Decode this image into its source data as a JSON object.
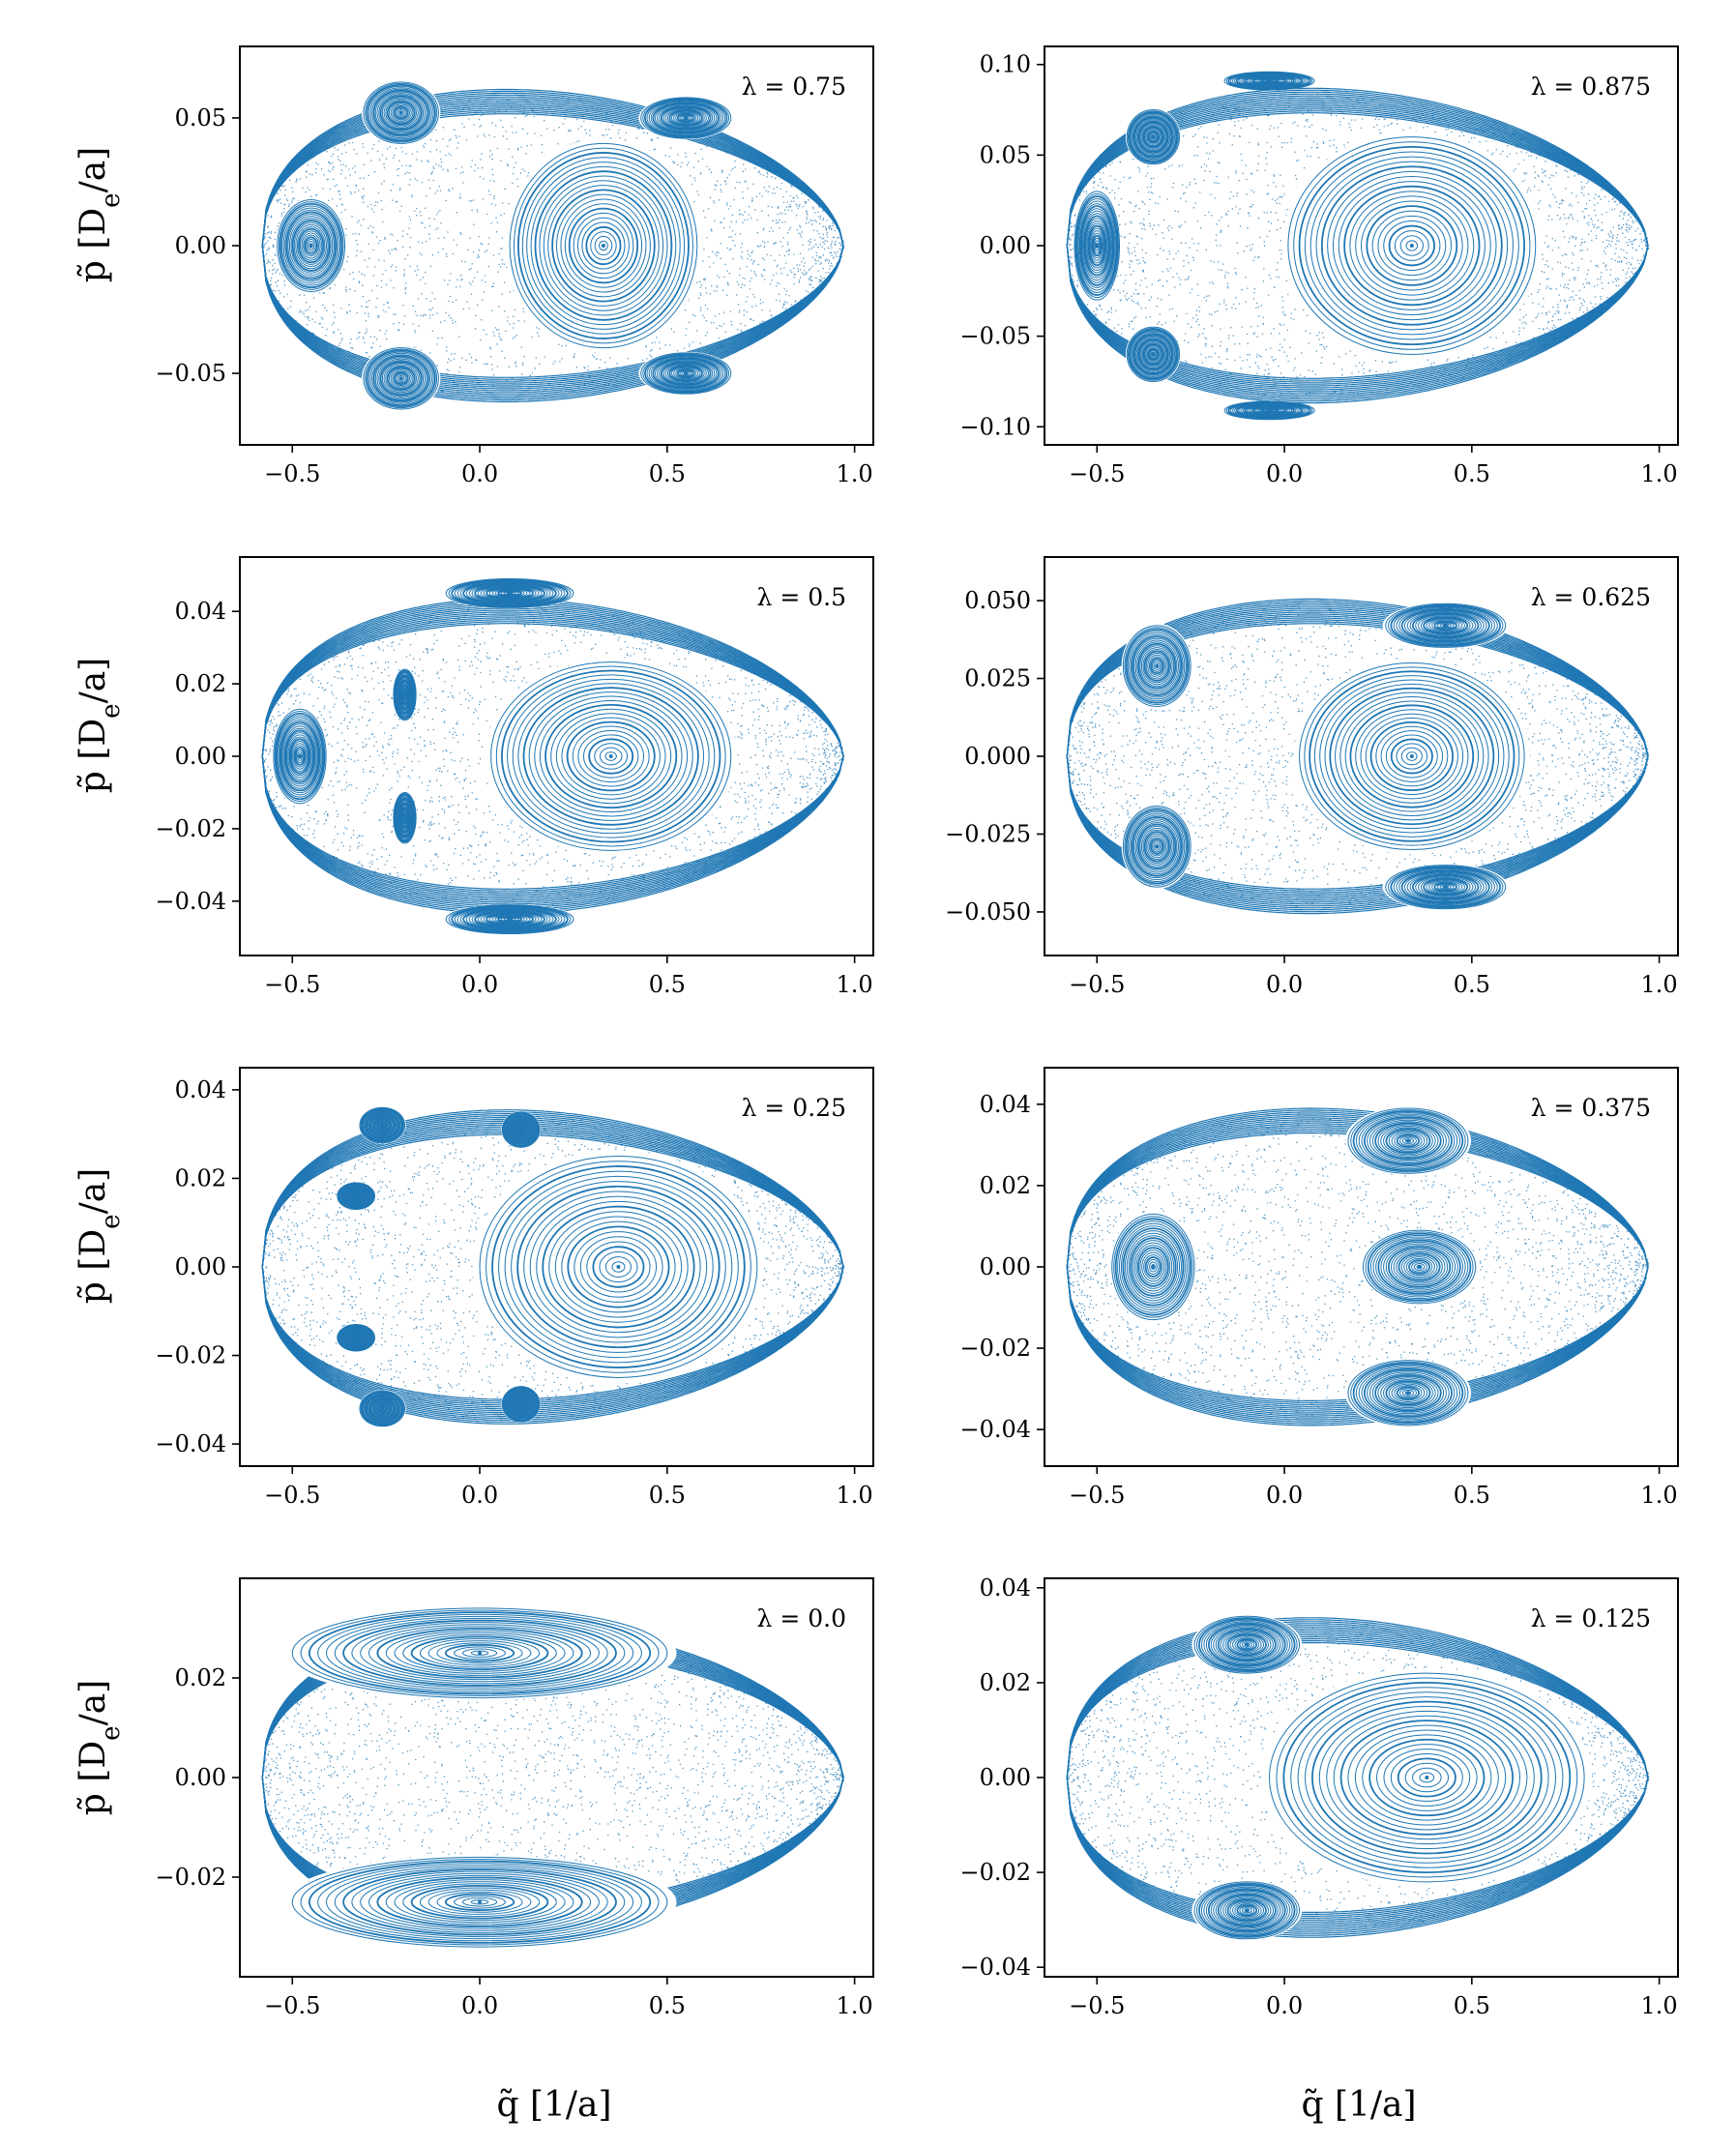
{
  "figure": {
    "ylabel": "p̃ [De/a]",
    "ylabel_main": "p̃ [D",
    "ylabel_sub": "e",
    "ylabel_end": "/a]",
    "xlabel": "q̃ [1/a]",
    "colors": {
      "trajectory": "#1f77b4",
      "axes": "#000000"
    }
  },
  "chart_data": [
    {
      "type": "scatter",
      "title": "λ = 0.75",
      "lambda": 0.75,
      "xlim": [
        -0.64,
        1.05
      ],
      "ylim": [
        -0.078,
        0.078
      ],
      "xticks": [
        "-0.5",
        "0.0",
        "0.5",
        "1.0"
      ],
      "xtick_values": [
        -0.5,
        0.0,
        0.5,
        1.0
      ],
      "yticks": [
        "-0.05",
        "0.00",
        "0.05"
      ],
      "ytick_values": [
        -0.05,
        0.0,
        0.05
      ],
      "ymax": 0.069,
      "center": [
        0.33,
        0.0
      ],
      "islands": [
        [
          0.33,
          0.0,
          0.25,
          0.04
        ],
        [
          -0.45,
          0.0,
          0.09,
          0.018
        ],
        [
          -0.21,
          0.052,
          0.1,
          0.012
        ],
        [
          -0.21,
          -0.052,
          0.1,
          0.012
        ],
        [
          0.55,
          0.05,
          0.12,
          0.008
        ],
        [
          0.55,
          -0.05,
          0.12,
          0.008
        ]
      ]
    },
    {
      "type": "scatter",
      "title": "λ = 0.875",
      "lambda": 0.875,
      "xlim": [
        -0.64,
        1.05
      ],
      "ylim": [
        -0.11,
        0.11
      ],
      "xticks": [
        "-0.5",
        "0.0",
        "0.5",
        "1.0"
      ],
      "xtick_values": [
        -0.5,
        0.0,
        0.5,
        1.0
      ],
      "yticks": [
        "-0.10",
        "-0.05",
        "0.00",
        "0.05",
        "0.10"
      ],
      "ytick_values": [
        -0.1,
        -0.05,
        0.0,
        0.05,
        0.1
      ],
      "ymax": 0.098,
      "center": [
        0.34,
        0.0
      ],
      "islands": [
        [
          0.34,
          0.0,
          0.33,
          0.06
        ],
        [
          -0.5,
          0.0,
          0.06,
          0.03
        ],
        [
          -0.35,
          0.06,
          0.07,
          0.015
        ],
        [
          -0.35,
          -0.06,
          0.07,
          0.015
        ],
        [
          -0.04,
          0.091,
          0.12,
          0.005
        ],
        [
          -0.04,
          -0.091,
          0.12,
          0.005
        ]
      ]
    },
    {
      "type": "scatter",
      "title": "λ = 0.5",
      "lambda": 0.5,
      "xlim": [
        -0.64,
        1.05
      ],
      "ylim": [
        -0.055,
        0.055
      ],
      "xticks": [
        "-0.5",
        "0.0",
        "0.5",
        "1.0"
      ],
      "xtick_values": [
        -0.5,
        0.0,
        0.5,
        1.0
      ],
      "yticks": [
        "-0.04",
        "-0.02",
        "0.00",
        "0.02",
        "0.04"
      ],
      "ytick_values": [
        -0.04,
        -0.02,
        0.0,
        0.02,
        0.04
      ],
      "ymax": 0.049,
      "center": [
        0.35,
        0.0
      ],
      "islands": [
        [
          0.35,
          0.0,
          0.32,
          0.026
        ],
        [
          -0.48,
          0.0,
          0.07,
          0.013
        ],
        [
          0.08,
          0.045,
          0.17,
          0.004
        ],
        [
          0.08,
          -0.045,
          0.17,
          0.004
        ],
        [
          -0.2,
          0.017,
          0.03,
          0.007
        ],
        [
          -0.2,
          -0.017,
          0.03,
          0.007
        ]
      ]
    },
    {
      "type": "scatter",
      "title": "λ = 0.625",
      "lambda": 0.625,
      "xlim": [
        -0.64,
        1.05
      ],
      "ylim": [
        -0.064,
        0.064
      ],
      "xticks": [
        "-0.5",
        "0.0",
        "0.5",
        "1.0"
      ],
      "xtick_values": [
        -0.5,
        0.0,
        0.5,
        1.0
      ],
      "yticks": [
        "-0.050",
        "-0.025",
        "0.000",
        "0.025",
        "0.050"
      ],
      "ytick_values": [
        -0.05,
        -0.025,
        0.0,
        0.025,
        0.05
      ],
      "ymax": 0.057,
      "center": [
        0.34,
        0.0
      ],
      "islands": [
        [
          0.34,
          0.0,
          0.3,
          0.03
        ],
        [
          -0.34,
          0.029,
          0.09,
          0.013
        ],
        [
          -0.34,
          -0.029,
          0.09,
          0.013
        ],
        [
          0.43,
          0.042,
          0.16,
          0.007
        ],
        [
          0.43,
          -0.042,
          0.16,
          0.007
        ]
      ]
    },
    {
      "type": "scatter",
      "title": "λ = 0.25",
      "lambda": 0.25,
      "xlim": [
        -0.64,
        1.05
      ],
      "ylim": [
        -0.045,
        0.045
      ],
      "xticks": [
        "-0.5",
        "0.0",
        "0.5",
        "1.0"
      ],
      "xtick_values": [
        -0.5,
        0.0,
        0.5,
        1.0
      ],
      "yticks": [
        "-0.04",
        "-0.02",
        "0.00",
        "0.02",
        "0.04"
      ],
      "ytick_values": [
        -0.04,
        -0.02,
        0.0,
        0.02,
        0.04
      ],
      "ymax": 0.04,
      "center": [
        0.37,
        0.0
      ],
      "islands": [
        [
          0.37,
          0.0,
          0.37,
          0.025
        ],
        [
          -0.26,
          0.032,
          0.06,
          0.004
        ],
        [
          -0.26,
          -0.032,
          0.06,
          0.004
        ],
        [
          0.11,
          0.031,
          0.05,
          0.004
        ],
        [
          0.11,
          -0.031,
          0.05,
          0.004
        ],
        [
          -0.33,
          0.016,
          0.05,
          0.003
        ],
        [
          -0.33,
          -0.016,
          0.05,
          0.003
        ]
      ]
    },
    {
      "type": "scatter",
      "title": "λ = 0.375",
      "lambda": 0.375,
      "xlim": [
        -0.64,
        1.05
      ],
      "ylim": [
        -0.049,
        0.049
      ],
      "xticks": [
        "-0.5",
        "0.0",
        "0.5",
        "1.0"
      ],
      "xtick_values": [
        -0.5,
        0.0,
        0.5,
        1.0
      ],
      "yticks": [
        "-0.04",
        "-0.02",
        "0.00",
        "0.02",
        "0.04"
      ],
      "ytick_values": [
        -0.04,
        -0.02,
        0.0,
        0.02,
        0.04
      ],
      "ymax": 0.044,
      "center": [
        0.36,
        0.0
      ],
      "islands": [
        [
          0.36,
          0.0,
          0.15,
          0.009
        ],
        [
          -0.35,
          0.0,
          0.11,
          0.013
        ],
        [
          0.33,
          0.031,
          0.16,
          0.008
        ],
        [
          0.33,
          -0.031,
          0.16,
          0.008
        ]
      ]
    },
    {
      "type": "scatter",
      "title": "λ = 0.0",
      "lambda": 0.0,
      "xlim": [
        -0.64,
        1.05
      ],
      "ylim": [
        -0.04,
        0.04
      ],
      "xticks": [
        "-0.5",
        "0.0",
        "0.5",
        "1.0"
      ],
      "xtick_values": [
        -0.5,
        0.0,
        0.5,
        1.0
      ],
      "yticks": [
        "-0.02",
        "0.00",
        "0.02"
      ],
      "ytick_values": [
        -0.02,
        0.0,
        0.02
      ],
      "ymax": 0.035,
      "center": [
        0.0,
        0.025
      ],
      "islands": [
        [
          0.0,
          0.025,
          0.5,
          0.009
        ],
        [
          0.0,
          -0.025,
          0.5,
          0.009
        ]
      ]
    },
    {
      "type": "scatter",
      "title": "λ = 0.125",
      "lambda": 0.125,
      "xlim": [
        -0.64,
        1.05
      ],
      "ylim": [
        -0.042,
        0.042
      ],
      "xticks": [
        "-0.5",
        "0.0",
        "0.5",
        "1.0"
      ],
      "xtick_values": [
        -0.5,
        0.0,
        0.5,
        1.0
      ],
      "yticks": [
        "-0.04",
        "-0.02",
        "0.00",
        "0.02",
        "0.04"
      ],
      "ytick_values": [
        -0.04,
        -0.02,
        0.0,
        0.02,
        0.04
      ],
      "ymax": 0.038,
      "center": [
        0.38,
        0.0
      ],
      "islands": [
        [
          0.38,
          0.0,
          0.42,
          0.022
        ],
        [
          -0.1,
          0.028,
          0.14,
          0.006
        ],
        [
          -0.1,
          -0.028,
          0.14,
          0.006
        ]
      ]
    }
  ]
}
